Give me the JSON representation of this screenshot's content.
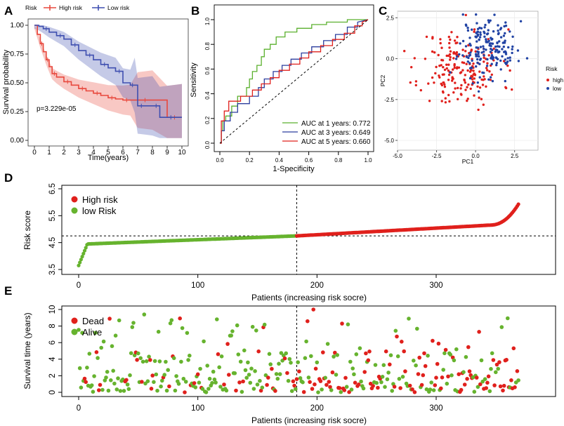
{
  "panels": {
    "a": {
      "letter": "A"
    },
    "b": {
      "letter": "B"
    },
    "c": {
      "letter": "C"
    },
    "d": {
      "letter": "D"
    },
    "e": {
      "letter": "E"
    }
  },
  "chart_data": [
    {
      "id": "A",
      "type": "line",
      "title": "",
      "xlabel": "Time(years)",
      "ylabel": "Survival probability",
      "xlim": [
        0,
        10
      ],
      "ylim": [
        0,
        1
      ],
      "xticks": [
        "0",
        "1",
        "2",
        "3",
        "4",
        "5",
        "6",
        "7",
        "8",
        "9",
        "10"
      ],
      "yticks": [
        "0.00",
        "0.25",
        "0.50",
        "0.75",
        "1.00"
      ],
      "legend_title": "Risk",
      "annotation": "p=3.229e-05",
      "series": [
        {
          "name": "High risk",
          "color": "#e8483d",
          "x": [
            0,
            0.2,
            0.4,
            0.6,
            0.8,
            1,
            1.2,
            1.5,
            2,
            2.5,
            3,
            3.5,
            4,
            4.5,
            5,
            5.5,
            6,
            6.5,
            7,
            8,
            9,
            10
          ],
          "y": [
            1,
            0.92,
            0.84,
            0.77,
            0.7,
            0.64,
            0.58,
            0.55,
            0.51,
            0.48,
            0.45,
            0.43,
            0.41,
            0.39,
            0.37,
            0.36,
            0.35,
            0.35,
            0.35,
            0.35,
            0.2,
            0.2
          ]
        },
        {
          "name": "Low risk",
          "color": "#3f4fb0",
          "x": [
            0,
            0.3,
            0.6,
            1,
            1.5,
            2,
            2.5,
            3,
            3.5,
            4,
            4.5,
            5,
            5.5,
            6,
            6.5,
            6.8,
            7,
            7.5,
            8,
            8.5,
            9,
            9.5,
            10
          ],
          "y": [
            1,
            0.99,
            0.97,
            0.94,
            0.91,
            0.88,
            0.83,
            0.78,
            0.74,
            0.7,
            0.66,
            0.63,
            0.6,
            0.5,
            0.48,
            0.48,
            0.3,
            0.3,
            0.3,
            0.2,
            0.2,
            0.2,
            0.2
          ]
        }
      ]
    },
    {
      "id": "B",
      "type": "line",
      "xlabel": "1-Specificity",
      "ylabel": "Sensitivity",
      "xlim": [
        0,
        1
      ],
      "ylim": [
        0,
        1
      ],
      "xticks": [
        "0.0",
        "0.2",
        "0.4",
        "0.6",
        "0.8",
        "1.0"
      ],
      "yticks": [
        "0.0",
        "0.2",
        "0.4",
        "0.6",
        "0.8",
        "1.0"
      ],
      "series": [
        {
          "name": "AUC at 1 years: 0.772",
          "color": "#5bb02e",
          "x": [
            0,
            0.01,
            0.01,
            0.02,
            0.02,
            0.04,
            0.04,
            0.08,
            0.08,
            0.12,
            0.12,
            0.18,
            0.18,
            0.2,
            0.2,
            0.22,
            0.22,
            0.25,
            0.25,
            0.28,
            0.28,
            0.3,
            0.3,
            0.34,
            0.34,
            0.38,
            0.38,
            0.44,
            0.44,
            0.52,
            0.52,
            0.62,
            0.62,
            0.72,
            0.72,
            0.86,
            0.86,
            1
          ],
          "y": [
            0,
            0,
            0.1,
            0.1,
            0.18,
            0.18,
            0.22,
            0.22,
            0.3,
            0.3,
            0.38,
            0.38,
            0.45,
            0.45,
            0.52,
            0.52,
            0.58,
            0.58,
            0.63,
            0.63,
            0.7,
            0.7,
            0.76,
            0.76,
            0.8,
            0.8,
            0.86,
            0.86,
            0.9,
            0.9,
            0.93,
            0.93,
            0.96,
            0.96,
            0.98,
            0.98,
            1,
            1
          ]
        },
        {
          "name": "AUC at 3 years: 0.649",
          "color": "#2c3e9e",
          "x": [
            0,
            0.01,
            0.01,
            0.03,
            0.03,
            0.07,
            0.07,
            0.12,
            0.12,
            0.2,
            0.2,
            0.26,
            0.26,
            0.3,
            0.3,
            0.36,
            0.36,
            0.42,
            0.42,
            0.48,
            0.48,
            0.55,
            0.55,
            0.62,
            0.62,
            0.7,
            0.7,
            0.78,
            0.78,
            0.86,
            0.86,
            0.93,
            0.93,
            1
          ],
          "y": [
            0,
            0,
            0.1,
            0.1,
            0.18,
            0.18,
            0.25,
            0.25,
            0.32,
            0.32,
            0.38,
            0.38,
            0.45,
            0.45,
            0.52,
            0.52,
            0.58,
            0.58,
            0.63,
            0.63,
            0.68,
            0.68,
            0.73,
            0.73,
            0.78,
            0.78,
            0.83,
            0.83,
            0.88,
            0.88,
            0.94,
            0.94,
            0.98,
            1
          ]
        },
        {
          "name": "AUC at 5 years: 0.660",
          "color": "#e0201c",
          "x": [
            0,
            0.01,
            0.01,
            0.03,
            0.03,
            0.06,
            0.06,
            0.14,
            0.14,
            0.22,
            0.22,
            0.28,
            0.28,
            0.34,
            0.34,
            0.4,
            0.4,
            0.47,
            0.47,
            0.54,
            0.54,
            0.6,
            0.6,
            0.68,
            0.68,
            0.76,
            0.76,
            0.84,
            0.84,
            0.91,
            0.91,
            0.96,
            0.96,
            1
          ],
          "y": [
            0,
            0,
            0.18,
            0.18,
            0.26,
            0.26,
            0.34,
            0.34,
            0.38,
            0.38,
            0.43,
            0.43,
            0.48,
            0.48,
            0.53,
            0.53,
            0.59,
            0.59,
            0.64,
            0.64,
            0.69,
            0.69,
            0.74,
            0.74,
            0.79,
            0.79,
            0.84,
            0.84,
            0.89,
            0.89,
            0.95,
            0.95,
            0.98,
            1
          ]
        },
        {
          "name": "reference",
          "color": "#000000",
          "dashed": true,
          "x": [
            0,
            1
          ],
          "y": [
            0,
            1
          ]
        }
      ]
    },
    {
      "id": "C",
      "type": "scatter",
      "xlabel": "PC1",
      "ylabel": "PC2",
      "xlim": [
        -5,
        4
      ],
      "ylim": [
        -5.6,
        2.9
      ],
      "xticks": [
        "-5.0",
        "-2.5",
        "0.0",
        "2.5"
      ],
      "yticks": [
        "-5.0",
        "-2.5",
        "0.0",
        "2.5"
      ],
      "legend_title": "Risk",
      "groups": [
        {
          "name": "high",
          "color": "#e0201c",
          "n": 190,
          "center": [
            -0.9,
            -0.6
          ],
          "spread": [
            1.3,
            1.2
          ]
        },
        {
          "name": "low",
          "color": "#2143a4",
          "n": 180,
          "center": [
            0.8,
            0.7
          ],
          "spread": [
            0.9,
            0.9
          ]
        }
      ]
    },
    {
      "id": "D",
      "type": "scatter",
      "xlabel": "Patients (increasing risk socre)",
      "ylabel": "Risk score",
      "xlim": [
        0,
        370
      ],
      "ylim": [
        3.5,
        6.5
      ],
      "xticks": [
        "0",
        "100",
        "200",
        "300"
      ],
      "yticks": [
        "3.5",
        "4.5",
        "5.5",
        "6.5"
      ],
      "cutoff_patient": 183,
      "cutoff_score": 4.75,
      "n_patients": 370,
      "legend": [
        {
          "name": "High risk",
          "color": "#e0201c"
        },
        {
          "name": "low Risk",
          "color": "#66b32e"
        }
      ]
    },
    {
      "id": "E",
      "type": "scatter",
      "xlabel": "Patients (increasing risk socre)",
      "ylabel": "Survival time (years)",
      "xlim": [
        0,
        370
      ],
      "ylim": [
        0,
        10
      ],
      "xticks": [
        "0",
        "100",
        "200",
        "300"
      ],
      "yticks": [
        "0",
        "2",
        "4",
        "6",
        "8",
        "10"
      ],
      "cutoff_patient": 183,
      "legend": [
        {
          "name": "Dead",
          "color": "#e0201c"
        },
        {
          "name": "Alive",
          "color": "#66b32e"
        }
      ]
    }
  ]
}
